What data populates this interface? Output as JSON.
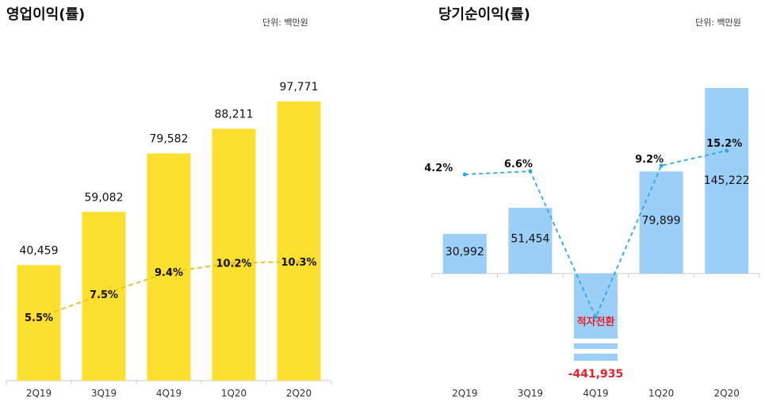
{
  "chart_data": [
    {
      "type": "bar",
      "title": "영업이익(률)",
      "unit_label": "단위: 백만원",
      "categories": [
        "2Q19",
        "3Q19",
        "4Q19",
        "1Q20",
        "2Q20"
      ],
      "series": [
        {
          "name": "",
          "type": "bar",
          "values": [
            40459,
            59082,
            79582,
            88211,
            97771
          ],
          "labels": [
            "40,459",
            "59,082",
            "79,582",
            "88,211",
            "97,771"
          ]
        },
        {
          "name": "",
          "type": "line",
          "values": [
            5.5,
            7.5,
            9.4,
            10.2,
            10.3
          ],
          "labels": [
            "5.5%",
            "7.5%",
            "9.4%",
            "10.2%",
            "10.3%"
          ]
        }
      ],
      "colors": {
        "bar": "#fbe02f",
        "line": "#e8c22a"
      }
    },
    {
      "type": "bar",
      "title": "당기순이익(률)",
      "unit_label": "단위: 백만원",
      "categories": [
        "2Q19",
        "3Q19",
        "4Q19",
        "1Q20",
        "2Q20"
      ],
      "series": [
        {
          "name": "",
          "type": "bar",
          "values": [
            30992,
            51454,
            -441935,
            79899,
            145222
          ],
          "labels": [
            "30,992",
            "51,454",
            "-441,935",
            "79,899",
            "145,222"
          ]
        },
        {
          "name": "",
          "type": "line",
          "values": [
            4.2,
            6.6,
            null,
            9.2,
            15.2
          ],
          "labels": [
            "4.2%",
            "6.6%",
            "",
            "9.2%",
            "15.2%"
          ]
        }
      ],
      "annotation": "적자전환",
      "axis_break": true,
      "colors": {
        "bar": "#9ccff7",
        "line": "#2ba8e6",
        "negative_label": "#e8202a"
      }
    }
  ]
}
